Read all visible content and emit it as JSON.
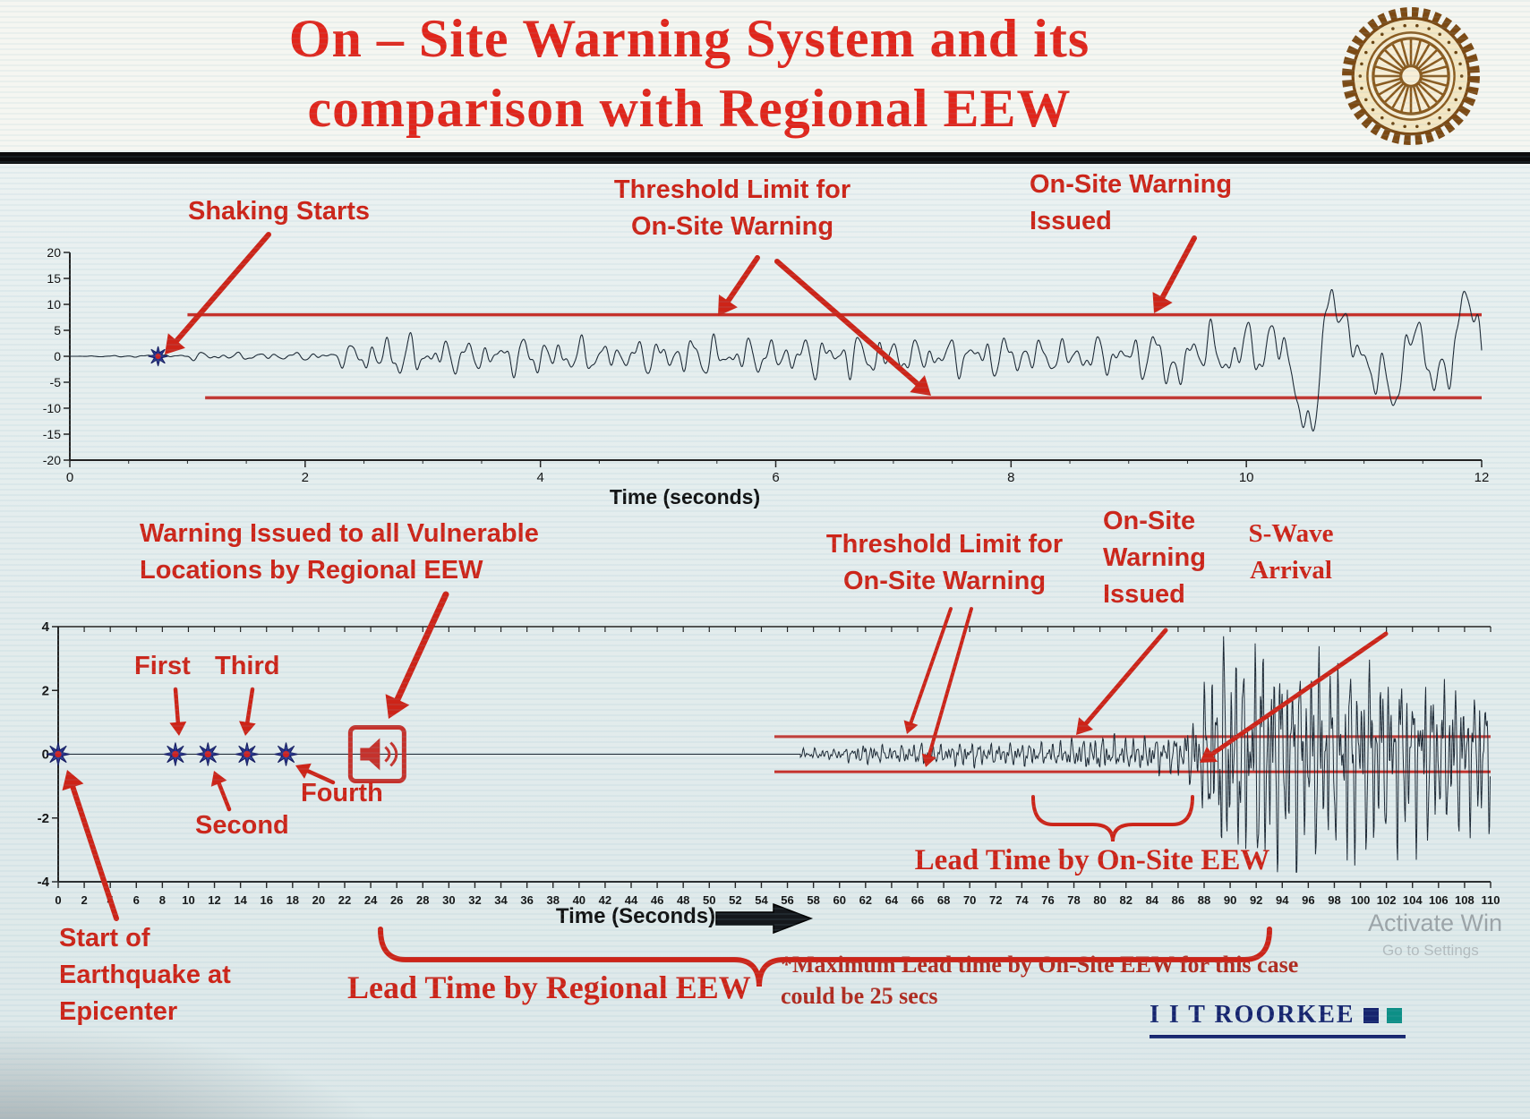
{
  "title": {
    "line1": "On – Site Warning System and its",
    "line2": "comparison with Regional EEW"
  },
  "annotations": {
    "chart1": {
      "shaking_starts": "Shaking Starts",
      "threshold": "Threshold Limit for\nOn-Site Warning",
      "warning_issued": "On-Site Warning\nIssued"
    },
    "chart2": {
      "regional_warning": "Warning Issued to all Vulnerable\nLocations by Regional EEW",
      "first": "First",
      "second": "Second",
      "third": "Third",
      "fourth": "Fourth",
      "threshold": "Threshold Limit for\nOn-Site Warning",
      "warning_issued": "On-Site\nWarning\nIssued",
      "s_wave": "S-Wave\nArrival",
      "lead_onsite": "Lead Time by On-Site EEW",
      "lead_regional": "Lead Time by Regional EEW",
      "start_epicenter": "Start of\nEarthquake at\nEpicenter",
      "footnote": "*Maximum Lead time by On-Site EEW for this case\ncould be 25 secs"
    }
  },
  "footer": {
    "brand": "I I T ROORKEE",
    "watermark_line1": "Activate Win",
    "watermark_line2": "Go to Settings"
  },
  "colors": {
    "title_red": "#e1251b",
    "annotation_red": "#cd2418",
    "threshold_red": "#c5322c",
    "waveform": "#1c2733",
    "star_blue": "#2a3590",
    "star_center_red": "#cc2222",
    "brand_navy": "#16246e",
    "brand_teal": "#0d8f86"
  },
  "chart_data": [
    {
      "type": "line",
      "name": "onsite-accelerogram",
      "xlabel": "Time (seconds)",
      "ylabel": "",
      "xlim": [
        0,
        12
      ],
      "ylim": [
        -20,
        20
      ],
      "xticks": [
        0,
        2,
        4,
        6,
        8,
        10,
        12
      ],
      "yticks": [
        -20,
        -15,
        -10,
        -5,
        0,
        5,
        10,
        15,
        20
      ],
      "grid": false,
      "threshold_upper": 8,
      "threshold_lower": -8,
      "threshold_x_start": 1,
      "shaking_start_t": 0.75,
      "onsite_warning_t": 9.2,
      "envelope": [
        [
          0,
          0
        ],
        [
          0.75,
          0.4
        ],
        [
          1,
          1
        ],
        [
          1.8,
          0.9
        ],
        [
          2.2,
          1.2
        ],
        [
          2.5,
          4.5
        ],
        [
          2.8,
          5.5
        ],
        [
          3.4,
          3.8
        ],
        [
          4,
          5
        ],
        [
          4.7,
          3.6
        ],
        [
          5.3,
          5.2
        ],
        [
          6,
          4.2
        ],
        [
          6.6,
          5.8
        ],
        [
          7.2,
          4
        ],
        [
          7.8,
          5.2
        ],
        [
          8.4,
          4.2
        ],
        [
          9,
          5
        ],
        [
          9.3,
          7
        ],
        [
          9.7,
          10
        ],
        [
          10.1,
          15
        ],
        [
          10.5,
          18
        ],
        [
          10.9,
          13
        ],
        [
          11.3,
          18
        ],
        [
          11.7,
          13
        ],
        [
          12,
          16
        ]
      ]
    },
    {
      "type": "line",
      "name": "regional-vs-onsite-timeline",
      "xlabel": "Time (Seconds)",
      "ylabel": "",
      "xlim": [
        0,
        110
      ],
      "ylim": [
        -4,
        4
      ],
      "xticks": {
        "from": 0,
        "to": 110,
        "step": 2
      },
      "yticks": [
        -4,
        -2,
        0,
        2,
        4
      ],
      "grid": false,
      "threshold_upper": 0.55,
      "threshold_lower": -0.55,
      "threshold_x_start": 55,
      "epicenter_t": 0,
      "regional_warning_times": [
        9,
        11.5,
        14.5,
        17.5
      ],
      "regional_alarm_t": 24.5,
      "p_wave_onset_t": 60,
      "onsite_warning_t": 78,
      "s_wave_arrival_t": 87,
      "envelope": [
        [
          60,
          0.15
        ],
        [
          62,
          0.3
        ],
        [
          64,
          0.22
        ],
        [
          66,
          0.32
        ],
        [
          68,
          0.25
        ],
        [
          70,
          0.38
        ],
        [
          72,
          0.28
        ],
        [
          74,
          0.35
        ],
        [
          76,
          0.3
        ],
        [
          78,
          0.42
        ],
        [
          80,
          0.5
        ],
        [
          82,
          0.45
        ],
        [
          84,
          0.5
        ],
        [
          86,
          0.6
        ],
        [
          87,
          0.9
        ],
        [
          88,
          1.9
        ],
        [
          89,
          2.9
        ],
        [
          90,
          3.4
        ],
        [
          91,
          2.7
        ],
        [
          92,
          3.3
        ],
        [
          93,
          3.5
        ],
        [
          94,
          2.8
        ],
        [
          95,
          3.4
        ],
        [
          96,
          2.6
        ],
        [
          97,
          3.1
        ],
        [
          98,
          2.5
        ],
        [
          99,
          3.0
        ],
        [
          100,
          2.6
        ],
        [
          101,
          2.9
        ],
        [
          102,
          2.3
        ],
        [
          103,
          2.7
        ],
        [
          104,
          2.2
        ],
        [
          105,
          2.5
        ],
        [
          106,
          2.0
        ],
        [
          107,
          2.3
        ],
        [
          108,
          1.9
        ],
        [
          109,
          2.1
        ],
        [
          110,
          1.9
        ]
      ]
    }
  ]
}
